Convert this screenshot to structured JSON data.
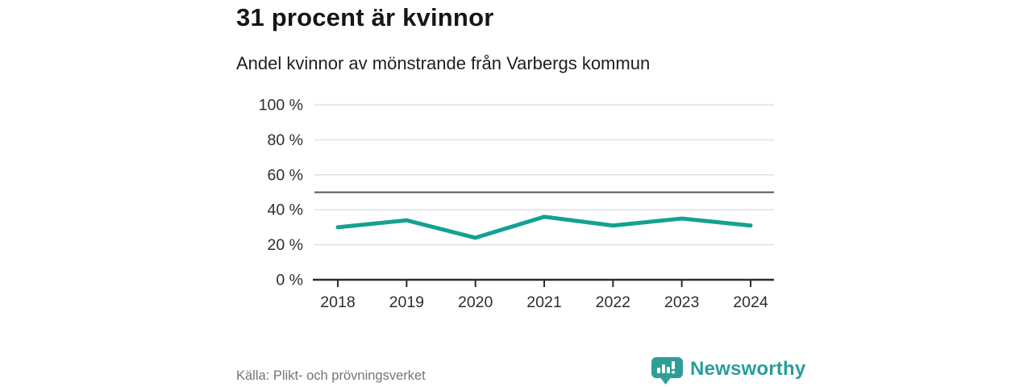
{
  "header": {
    "title": "31 procent är kvinnor",
    "subtitle": "Andel kvinnor av mönstrande från Varbergs kommun"
  },
  "chart_data": {
    "type": "line",
    "title": "31 procent är kvinnor",
    "subtitle": "Andel kvinnor av mönstrande från Varbergs kommun",
    "categories": [
      "2018",
      "2019",
      "2020",
      "2021",
      "2022",
      "2023",
      "2024"
    ],
    "series": [
      {
        "name": "Andel kvinnor av mönstrande",
        "values": [
          30,
          34,
          24,
          36,
          31,
          35,
          31
        ]
      }
    ],
    "xlabel": "",
    "ylabel": "",
    "ylim": [
      0,
      100
    ],
    "yticks": [
      {
        "value": 0,
        "label": "0 %"
      },
      {
        "value": 20,
        "label": "20 %"
      },
      {
        "value": 40,
        "label": "40 %"
      },
      {
        "value": 60,
        "label": "60 %"
      },
      {
        "value": 80,
        "label": "80 %"
      },
      {
        "value": 100,
        "label": "100 %"
      }
    ],
    "reference_line": {
      "value": 50
    },
    "grid": true,
    "legend_position": "none"
  },
  "footer": {
    "source": "Källa: Plikt- och prövningsverket",
    "brand": "Newsworthy"
  },
  "colors": {
    "line": "#14a193",
    "brand_teal": "#2f9e97",
    "gridline": "#e2e2e2",
    "reference_line": "#55565c",
    "axis": "#2b2b2b",
    "tick_text": "#2e2e2e",
    "title_text": "#161616",
    "muted_text": "#757575"
  }
}
